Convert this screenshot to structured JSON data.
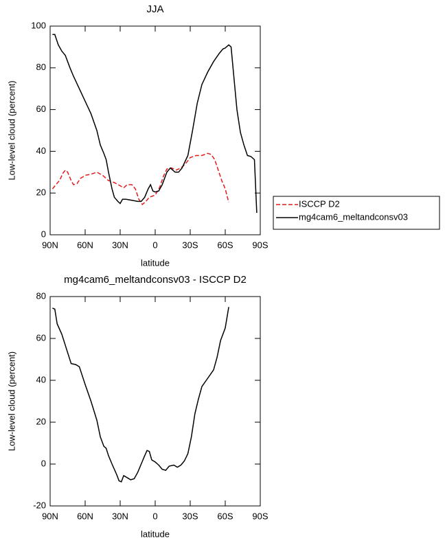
{
  "chart_data": [
    {
      "type": "line",
      "title": "JJA",
      "xlabel": "latitude",
      "ylabel": "Low-level cloud (percent)",
      "xlim": [
        90,
        -90
      ],
      "xticks": [
        {
          "value": 90,
          "label": "90N"
        },
        {
          "value": 60,
          "label": "60N"
        },
        {
          "value": 30,
          "label": "30N"
        },
        0,
        {
          "value": -30,
          "label": "30S"
        },
        {
          "value": -60,
          "label": "60S"
        },
        {
          "value": -90,
          "label": "90S"
        }
      ],
      "ylim": [
        0,
        100
      ],
      "yticks": [
        0,
        20,
        40,
        60,
        80,
        100
      ],
      "legend": "right",
      "series": [
        {
          "name": "ISCCP D2",
          "color": "#e41a1c",
          "dash": true,
          "x": [
            88,
            85,
            82,
            79,
            77,
            75,
            72,
            70,
            67,
            64,
            60,
            55,
            50,
            45,
            40,
            35,
            30,
            27,
            24,
            20,
            17,
            14,
            11,
            8,
            5,
            0,
            -4,
            -7,
            -10,
            -14,
            -18,
            -22,
            -26,
            -30,
            -35,
            -40,
            -45,
            -48,
            -51,
            -54,
            -57,
            -60,
            -63
          ],
          "values": [
            22,
            24,
            26,
            29.5,
            31,
            30,
            26,
            24,
            24.5,
            27,
            28.5,
            29,
            30,
            28.5,
            26,
            25,
            23.5,
            22.5,
            24,
            24,
            22,
            17,
            14.5,
            16,
            18,
            19,
            23,
            28,
            31.5,
            32,
            31,
            32,
            34,
            37,
            38,
            38,
            39,
            38.5,
            36,
            31,
            26,
            22,
            15.5
          ]
        },
        {
          "name": "mg4cam6_meltandconsv03",
          "color": "#000000",
          "dash": false,
          "x": [
            88,
            86,
            83,
            80,
            77,
            73,
            70,
            65,
            60,
            55,
            50,
            47,
            44,
            42,
            40,
            37,
            35,
            32,
            30,
            28,
            25,
            20,
            15,
            12,
            9,
            6,
            4,
            2,
            0,
            -3,
            -6,
            -10,
            -13,
            -17,
            -20,
            -23,
            -28,
            -32,
            -36,
            -40,
            -45,
            -50,
            -55,
            -58,
            -60,
            -63,
            -65,
            -67,
            -70,
            -73,
            -76,
            -79,
            -82,
            -85,
            -87
          ],
          "values": [
            96,
            96,
            91,
            88,
            86,
            80,
            76,
            70,
            64,
            58,
            50,
            43,
            39,
            36,
            30,
            22,
            18,
            16,
            15,
            17,
            17,
            16.5,
            16,
            16,
            18,
            22,
            24,
            21,
            20.5,
            21,
            24,
            30,
            32,
            30,
            30,
            32,
            38,
            50,
            63,
            72,
            78,
            83,
            87,
            89,
            89.5,
            91,
            90,
            78,
            60,
            49,
            43,
            38,
            37.5,
            36,
            10.5
          ]
        }
      ]
    },
    {
      "type": "line",
      "title": "mg4cam6_meltandconsv03 - ISCCP D2",
      "xlabel": "latitude",
      "ylabel": "Low-level cloud (percent)",
      "xlim": [
        90,
        -90
      ],
      "xticks": [
        {
          "value": 90,
          "label": "90N"
        },
        {
          "value": 60,
          "label": "60N"
        },
        {
          "value": 30,
          "label": "30N"
        },
        0,
        {
          "value": -30,
          "label": "30S"
        },
        {
          "value": -60,
          "label": "60S"
        },
        {
          "value": -90,
          "label": "90S"
        }
      ],
      "ylim": [
        -20,
        80
      ],
      "yticks": [
        -20,
        0,
        20,
        40,
        60,
        80
      ],
      "series": [
        {
          "color": "#000000",
          "dash": false,
          "x": [
            88,
            86,
            84,
            80,
            76,
            72,
            68,
            65,
            60,
            55,
            50,
            47,
            44,
            42,
            40,
            37,
            33,
            31,
            29,
            27,
            24,
            21,
            18,
            15,
            12,
            9,
            7,
            5,
            3,
            0,
            -3,
            -6,
            -9,
            -12,
            -16,
            -19,
            -22,
            -25,
            -28,
            -31,
            -34,
            -37,
            -40,
            -45,
            -50,
            -53,
            -56,
            -60,
            -63
          ],
          "values": [
            74.5,
            74,
            67,
            62,
            55,
            48,
            47.5,
            46.5,
            38,
            30,
            21,
            13,
            8.5,
            7.5,
            4,
            0,
            -5,
            -8,
            -8.5,
            -5.5,
            -6.5,
            -7.5,
            -7,
            -4,
            0,
            4,
            6.5,
            6,
            2,
            1,
            -0.5,
            -2.5,
            -3,
            -1,
            -0.5,
            -1.5,
            -0.5,
            1.5,
            5,
            13,
            24,
            31,
            37,
            41,
            45,
            51,
            59,
            65,
            75
          ]
        }
      ]
    }
  ]
}
